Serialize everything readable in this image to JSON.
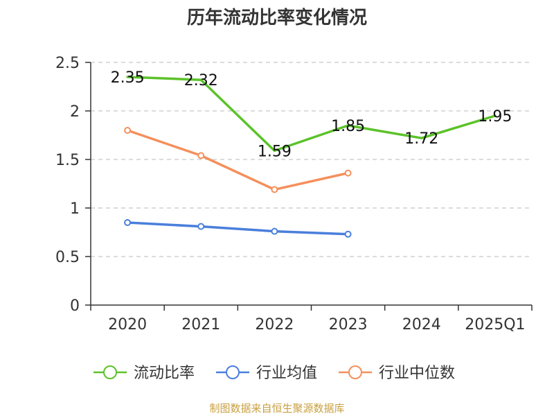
{
  "chart_data": {
    "type": "line",
    "title": "历年流动比率变化情况",
    "categories": [
      "2020",
      "2021",
      "2022",
      "2023",
      "2024",
      "2025Q1"
    ],
    "ylim": [
      0,
      2.5
    ],
    "yticks": [
      "0",
      "0.5",
      "1",
      "1.5",
      "2",
      "2.5"
    ],
    "ytick_values": [
      0,
      0.5,
      1,
      1.5,
      2,
      2.5
    ],
    "grid": true,
    "legend_position": "bottom",
    "series": [
      {
        "name": "流动比率",
        "color": "#5cc22a",
        "values": [
          2.35,
          2.32,
          1.59,
          1.85,
          1.72,
          1.95
        ],
        "labels": [
          "2.35",
          "2.32",
          "1.59",
          "1.85",
          "1.72",
          "1.95"
        ],
        "show_labels": true,
        "markers": false
      },
      {
        "name": "行业均值",
        "color": "#4a7fdc",
        "values": [
          0.85,
          0.81,
          0.76,
          0.73,
          null,
          null
        ],
        "show_labels": false,
        "markers": true
      },
      {
        "name": "行业中位数",
        "color": "#f58f5b",
        "values": [
          1.8,
          1.54,
          1.19,
          1.36,
          null,
          null
        ],
        "show_labels": false,
        "markers": true
      }
    ]
  },
  "source": "制图数据来自恒生聚源数据库"
}
